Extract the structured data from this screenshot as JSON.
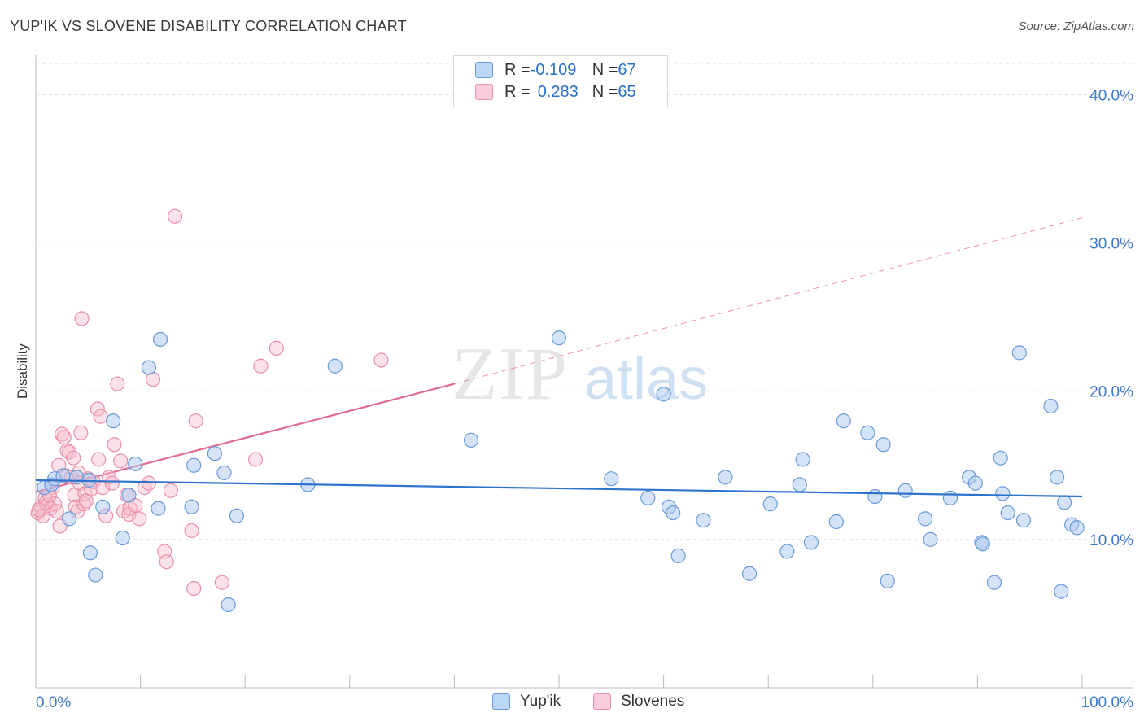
{
  "header": {
    "title": "YUP'IK VS SLOVENE DISABILITY CORRELATION CHART",
    "source": "Source: ZipAtlas.com"
  },
  "legend": {
    "series1": {
      "r_label": "R = ",
      "r_value": "-0.109",
      "n_label": "N = ",
      "n_value": "67"
    },
    "series2": {
      "r_label": "R = ",
      "r_value": "0.283",
      "n_label": "N = ",
      "n_value": "65"
    }
  },
  "bottom_legend": {
    "series1": "Yup'ik",
    "series2": "Slovenes"
  },
  "watermark": {
    "part1": "ZIP",
    "part2": "atlas"
  },
  "colors": {
    "blue_fill": "#a9c8f0",
    "blue_stroke": "#6a9ad8",
    "blue_line": "#2f73cc",
    "pink_fill": "#f6bccd",
    "pink_stroke": "#e890aa",
    "pink_line": "#e06a92",
    "axis_text": "#3b78c9",
    "grid": "#dddddd"
  },
  "chart_data": {
    "type": "scatter",
    "title": "YUP'IK VS SLOVENE DISABILITY CORRELATION CHART",
    "xlabel": "",
    "ylabel": "Disability",
    "xlim": [
      0,
      100
    ],
    "ylim": [
      0,
      42
    ],
    "x_tick_labels": [
      "0.0%",
      "100.0%"
    ],
    "y_ticks": [
      10,
      20,
      30,
      40
    ],
    "y_tick_labels": [
      "10.0%",
      "20.0%",
      "30.0%",
      "40.0%"
    ],
    "series": [
      {
        "name": "Yup'ik",
        "r": -0.109,
        "n": 67,
        "trend": {
          "x1": 0,
          "y1": 14.0,
          "x2": 100,
          "y2": 12.9
        },
        "points": [
          [
            0.8,
            13.5
          ],
          [
            1.5,
            13.7
          ],
          [
            1.8,
            14.1
          ],
          [
            2.6,
            14.3
          ],
          [
            3.2,
            11.4
          ],
          [
            3.9,
            14.2
          ],
          [
            5.1,
            14.0
          ],
          [
            5.2,
            9.1
          ],
          [
            5.7,
            7.6
          ],
          [
            6.4,
            12.2
          ],
          [
            7.4,
            18.0
          ],
          [
            8.3,
            10.1
          ],
          [
            8.9,
            13.0
          ],
          [
            9.5,
            15.1
          ],
          [
            10.8,
            21.6
          ],
          [
            11.7,
            12.1
          ],
          [
            11.9,
            23.5
          ],
          [
            14.9,
            12.2
          ],
          [
            15.1,
            15.0
          ],
          [
            17.1,
            15.8
          ],
          [
            18.0,
            14.5
          ],
          [
            18.4,
            5.6
          ],
          [
            19.2,
            11.6
          ],
          [
            26.0,
            13.7
          ],
          [
            28.6,
            21.7
          ],
          [
            41.6,
            16.7
          ],
          [
            50.0,
            23.6
          ],
          [
            55.0,
            14.1
          ],
          [
            58.5,
            12.8
          ],
          [
            60.0,
            19.8
          ],
          [
            60.5,
            12.2
          ],
          [
            60.9,
            11.8
          ],
          [
            61.4,
            8.9
          ],
          [
            63.8,
            11.3
          ],
          [
            65.9,
            14.2
          ],
          [
            68.2,
            7.7
          ],
          [
            70.2,
            12.4
          ],
          [
            71.8,
            9.2
          ],
          [
            73.0,
            13.7
          ],
          [
            73.3,
            15.4
          ],
          [
            74.1,
            9.8
          ],
          [
            76.5,
            11.2
          ],
          [
            77.2,
            18.0
          ],
          [
            79.5,
            17.2
          ],
          [
            80.2,
            12.9
          ],
          [
            81.0,
            16.4
          ],
          [
            81.4,
            7.2
          ],
          [
            83.1,
            13.3
          ],
          [
            85.0,
            11.4
          ],
          [
            85.5,
            10.0
          ],
          [
            87.4,
            12.8
          ],
          [
            89.2,
            14.2
          ],
          [
            89.8,
            13.8
          ],
          [
            90.4,
            9.8
          ],
          [
            90.5,
            9.7
          ],
          [
            91.6,
            7.1
          ],
          [
            92.2,
            15.5
          ],
          [
            92.4,
            13.1
          ],
          [
            92.9,
            11.8
          ],
          [
            94.0,
            22.6
          ],
          [
            94.4,
            11.3
          ],
          [
            97.0,
            19.0
          ],
          [
            97.6,
            14.2
          ],
          [
            98.0,
            6.5
          ],
          [
            98.3,
            12.5
          ],
          [
            99.0,
            11.0
          ],
          [
            99.5,
            10.8
          ]
        ]
      },
      {
        "name": "Slovenes",
        "r": 0.283,
        "n": 65,
        "trend": {
          "x1": 0,
          "y1": 13.2,
          "x2": 40,
          "y2": 20.5,
          "dashed_to_x": 100,
          "dashed_to_y": 31.7
        },
        "points": [
          [
            0.2,
            11.8
          ],
          [
            0.5,
            12.2
          ],
          [
            0.7,
            11.6
          ],
          [
            0.9,
            12.8
          ],
          [
            1.2,
            12.3
          ],
          [
            1.4,
            12.1
          ],
          [
            1.6,
            13.5
          ],
          [
            1.8,
            12.4
          ],
          [
            2.0,
            11.9
          ],
          [
            2.2,
            15.0
          ],
          [
            2.3,
            10.9
          ],
          [
            2.5,
            17.1
          ],
          [
            2.7,
            16.9
          ],
          [
            2.9,
            14.3
          ],
          [
            3.0,
            16.0
          ],
          [
            3.2,
            15.9
          ],
          [
            3.4,
            14.2
          ],
          [
            3.6,
            15.5
          ],
          [
            3.7,
            13.0
          ],
          [
            3.8,
            12.2
          ],
          [
            4.0,
            11.9
          ],
          [
            4.1,
            14.5
          ],
          [
            4.2,
            13.8
          ],
          [
            4.3,
            17.2
          ],
          [
            4.4,
            24.9
          ],
          [
            4.6,
            12.4
          ],
          [
            4.7,
            13.1
          ],
          [
            4.8,
            12.6
          ],
          [
            5.0,
            14.1
          ],
          [
            5.3,
            13.4
          ],
          [
            5.5,
            13.9
          ],
          [
            5.9,
            18.8
          ],
          [
            6.0,
            15.4
          ],
          [
            6.2,
            18.3
          ],
          [
            6.4,
            13.5
          ],
          [
            6.7,
            11.6
          ],
          [
            7.0,
            14.2
          ],
          [
            7.3,
            13.8
          ],
          [
            7.5,
            16.4
          ],
          [
            7.8,
            20.5
          ],
          [
            8.1,
            15.3
          ],
          [
            8.4,
            11.9
          ],
          [
            8.7,
            13.0
          ],
          [
            8.9,
            11.7
          ],
          [
            9.0,
            12.1
          ],
          [
            9.5,
            12.3
          ],
          [
            9.9,
            11.4
          ],
          [
            10.4,
            13.5
          ],
          [
            10.8,
            13.8
          ],
          [
            11.2,
            20.8
          ],
          [
            12.3,
            9.2
          ],
          [
            12.5,
            8.5
          ],
          [
            12.9,
            13.3
          ],
          [
            13.3,
            31.8
          ],
          [
            14.9,
            10.6
          ],
          [
            15.1,
            6.7
          ],
          [
            15.3,
            18.0
          ],
          [
            17.8,
            7.1
          ],
          [
            21.0,
            15.4
          ],
          [
            21.5,
            21.7
          ],
          [
            23.0,
            22.9
          ],
          [
            33.0,
            22.1
          ],
          [
            1.0,
            12.5
          ],
          [
            0.3,
            12.0
          ],
          [
            1.3,
            13.0
          ]
        ]
      }
    ]
  }
}
